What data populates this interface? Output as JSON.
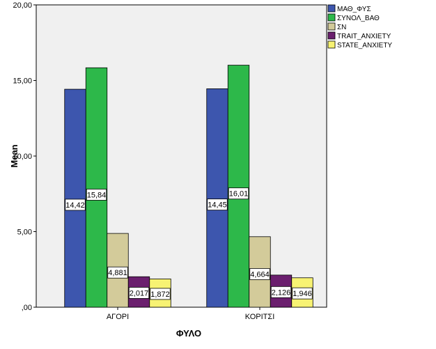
{
  "chart_data": {
    "type": "bar",
    "ylabel": "Mean",
    "xlabel": "ΦΥΛΟ",
    "ylim": [
      0,
      20
    ],
    "yticks": [
      0,
      5,
      10,
      15,
      20
    ],
    "ytick_labels": [
      ",00",
      "5,00",
      "10,00",
      "15,00",
      "20,00"
    ],
    "categories": [
      "ΑΓΟΡΙ",
      "ΚΟΡΙΤΣΙ"
    ],
    "grid": false,
    "legend_position": "top-right",
    "series": [
      {
        "name": "ΜΑΘ_ΦΥΣ",
        "color": "#3D56AE",
        "values": [
          14.42,
          14.45
        ],
        "labels": [
          "14,42",
          "14,45"
        ]
      },
      {
        "name": "ΣΥΝΟΛ_ΒΑΘ",
        "color": "#2DB84A",
        "values": [
          15.84,
          16.01
        ],
        "labels": [
          "15,84",
          "16,01"
        ]
      },
      {
        "name": "ΣΝ",
        "color": "#D3CB9A",
        "values": [
          4.881,
          4.664
        ],
        "labels": [
          "4,881",
          "4,664"
        ]
      },
      {
        "name": "TRAIT_ANXIETY",
        "color": "#6B1F6E",
        "values": [
          2.017,
          2.126
        ],
        "labels": [
          "2,017",
          "2,126"
        ]
      },
      {
        "name": "STATE_ANXIETY",
        "color": "#F7F273",
        "values": [
          1.872,
          1.946
        ],
        "labels": [
          "1,872",
          "1,946"
        ]
      }
    ]
  }
}
